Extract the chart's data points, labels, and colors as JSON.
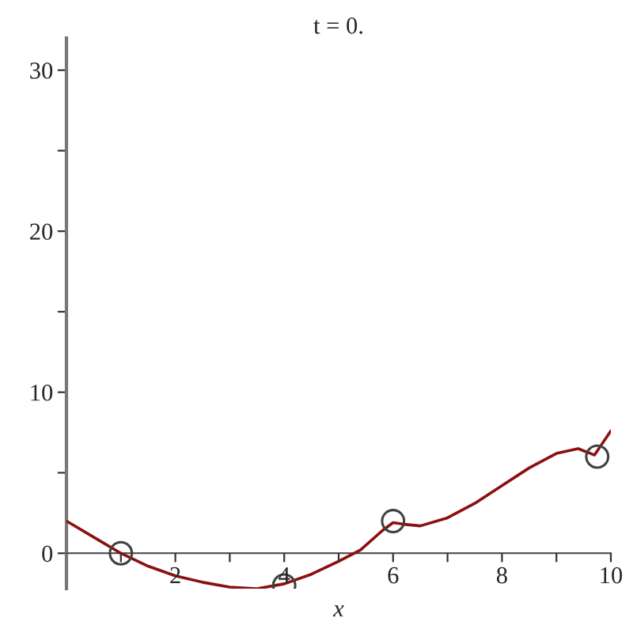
{
  "chart_data": {
    "type": "line",
    "title": "t = 0.",
    "xlabel": "x",
    "series": [
      {
        "color": "#8c1010",
        "marker": "none",
        "x": [
          0,
          0.5,
          1.0,
          1.5,
          2.0,
          2.5,
          3.0,
          3.5,
          4.0,
          4.5,
          5.0,
          5.4,
          5.8,
          6.0,
          6.2,
          6.5,
          7.0,
          7.5,
          8.0,
          8.5,
          9.0,
          9.4,
          9.7,
          10
        ],
        "values": [
          2.0,
          1.0,
          0,
          -0.8,
          -1.4,
          -1.8,
          -2.1,
          -2.2,
          -1.9,
          -1.3,
          -0.5,
          0.2,
          1.4,
          1.9,
          1.8,
          1.7,
          2.2,
          3.1,
          4.2,
          5.3,
          6.2,
          6.5,
          6.1,
          7.6
        ]
      },
      {
        "type": "scatter",
        "color": "#404040",
        "marker": "circle",
        "x": [
          1,
          4,
          6,
          9.75
        ],
        "values": [
          0,
          -2,
          2,
          6
        ]
      }
    ],
    "xlim": [
      0,
      10
    ],
    "ylim": [
      -2.2,
      32
    ],
    "xticks": [
      {
        "value": 1,
        "label": null
      },
      2,
      {
        "value": 3,
        "label": null
      },
      4,
      {
        "value": 5,
        "label": null
      },
      6,
      {
        "value": 7,
        "label": null
      },
      8,
      {
        "value": 9,
        "label": null
      },
      10
    ],
    "yticks": [
      0,
      {
        "value": 5,
        "label": null
      },
      10,
      {
        "value": 15,
        "label": null
      },
      20,
      {
        "value": 25,
        "label": null
      },
      30
    ],
    "grid": false,
    "legend": false
  }
}
